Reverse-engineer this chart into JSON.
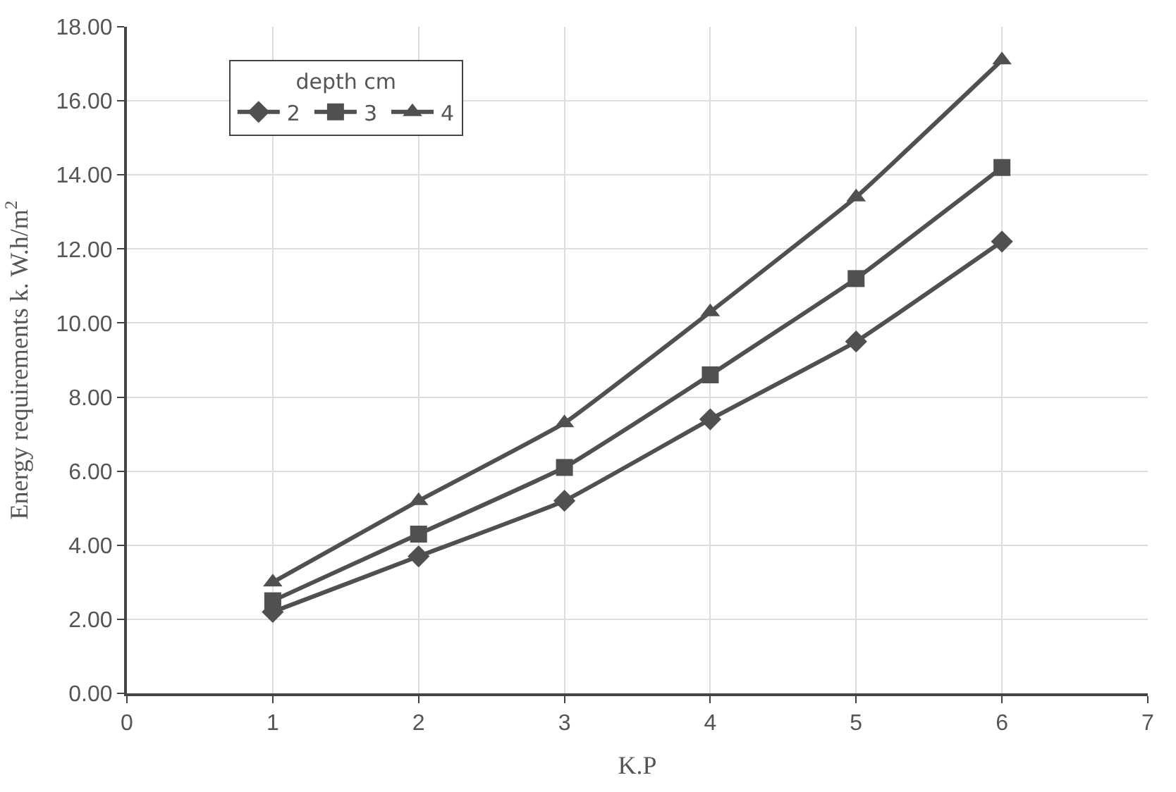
{
  "chart_data": {
    "type": "line",
    "xlabel": "K.P",
    "ylabel": "Energy requirements k. W.h/m$^{2}$",
    "legend_title": "depth cm",
    "legend": "top left",
    "grid": true,
    "x": [
      1,
      2,
      3,
      4,
      5,
      6
    ],
    "series": [
      {
        "name": "2",
        "color": "#505050",
        "marker": "diamond",
        "values": [
          2.2,
          3.7,
          5.2,
          7.4,
          9.5,
          12.2
        ]
      },
      {
        "name": "3",
        "color": "#505050",
        "marker": "square",
        "values": [
          2.5,
          4.3,
          6.1,
          8.6,
          11.2,
          14.2
        ]
      },
      {
        "name": "4",
        "color": "#505050",
        "marker": "triangle",
        "values": [
          3.0,
          5.2,
          7.3,
          10.3,
          13.4,
          17.1
        ]
      }
    ],
    "xlim": [
      0,
      7
    ],
    "xticks": [
      0,
      1,
      2,
      3,
      4,
      5,
      6,
      7
    ],
    "ylim": [
      0,
      18
    ],
    "yticks": [
      {
        "value": 0,
        "label": "0.00"
      },
      {
        "value": 2,
        "label": "2.00"
      },
      {
        "value": 4,
        "label": "4.00"
      },
      {
        "value": 6,
        "label": "6.00"
      },
      {
        "value": 8,
        "label": "8.00"
      },
      {
        "value": 10,
        "label": "10.00"
      },
      {
        "value": 12,
        "label": "12.00"
      },
      {
        "value": 14,
        "label": "14.00"
      },
      {
        "value": 16,
        "label": "16.00"
      },
      {
        "value": 18,
        "label": "18.00"
      }
    ]
  }
}
